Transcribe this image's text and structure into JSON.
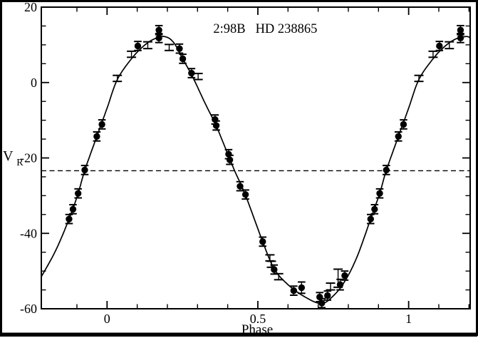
{
  "figure_background": "#ffffff",
  "ink_color": "#000000",
  "chart_data": {
    "type": "scatter",
    "title": "2:98B  HD 238865",
    "annotations": [
      {
        "text": "2:98B"
      },
      {
        "text": "HD 238865"
      }
    ],
    "xlabel": "Phase",
    "ylabel": {
      "base": "V",
      "sub": "R"
    },
    "xlim": [
      -0.218,
      1.204
    ],
    "ylim": [
      -60,
      20
    ],
    "x_ticks": [
      {
        "value": 0,
        "label": "0"
      },
      {
        "value": 0.5,
        "label": "0.5"
      },
      {
        "value": 1,
        "label": "1"
      }
    ],
    "x_minor_step": 0.1,
    "y_ticks": [
      {
        "value": 20,
        "label": "20"
      },
      {
        "value": 0,
        "label": "0"
      },
      {
        "value": -20,
        "label": "-20"
      },
      {
        "value": -40,
        "label": "-40"
      },
      {
        "value": -60,
        "label": "-60"
      }
    ],
    "y_minor_step": 5,
    "grid": false,
    "legend": "none",
    "systemic_velocity_dashed_line": -23.4,
    "phase_wrap_duplicate_range": [
      -0.19,
      1.19
    ],
    "model_curve_points": [
      [
        -0.218,
        -51.5
      ],
      [
        -0.17,
        -44.5
      ],
      [
        -0.126,
        -36.2
      ],
      [
        -0.096,
        -29.4
      ],
      [
        -0.074,
        -23.3
      ],
      [
        -0.034,
        -14.3
      ],
      [
        0.0,
        -6.8
      ],
      [
        0.034,
        0.8
      ],
      [
        0.081,
        6.3
      ],
      [
        0.12,
        9.6
      ],
      [
        0.155,
        11.5
      ],
      [
        0.19,
        12.2
      ],
      [
        0.22,
        10.7
      ],
      [
        0.251,
        6.3
      ],
      [
        0.285,
        1.3
      ],
      [
        0.325,
        -5.5
      ],
      [
        0.362,
        -11.5
      ],
      [
        0.405,
        -19.9
      ],
      [
        0.423,
        -23.4
      ],
      [
        0.459,
        -29.9
      ],
      [
        0.516,
        -42.2
      ],
      [
        0.554,
        -49.4
      ],
      [
        0.6,
        -53.6
      ],
      [
        0.655,
        -56.8
      ],
      [
        0.71,
        -58.6
      ],
      [
        0.75,
        -56.6
      ],
      [
        0.79,
        -52.5
      ],
      [
        0.83,
        -46.0
      ],
      [
        0.874,
        -36.2
      ],
      [
        0.904,
        -29.4
      ],
      [
        0.926,
        -23.3
      ],
      [
        0.966,
        -14.3
      ],
      [
        1.0,
        -6.8
      ],
      [
        1.034,
        0.8
      ],
      [
        1.081,
        6.3
      ],
      [
        1.12,
        9.6
      ],
      [
        1.155,
        11.5
      ],
      [
        1.19,
        12.2
      ],
      [
        1.204,
        11.9
      ]
    ],
    "series": [
      {
        "name": "radial velocities (filled circles)",
        "marker": "filled-circle",
        "points": [
          {
            "phase": 0.102,
            "v": 9.7,
            "err": 1.2
          },
          {
            "phase": 0.172,
            "v": 13.9,
            "err": 1.2
          },
          {
            "phase": 0.172,
            "v": 11.8,
            "err": 1.2
          },
          {
            "phase": 0.24,
            "v": 9.0,
            "err": 1.2
          },
          {
            "phase": 0.251,
            "v": 6.3,
            "err": 1.2
          },
          {
            "phase": 0.28,
            "v": 2.5,
            "err": 1.2
          },
          {
            "phase": 0.358,
            "v": -9.8,
            "err": 1.2
          },
          {
            "phase": 0.362,
            "v": -11.4,
            "err": 1.2
          },
          {
            "phase": 0.403,
            "v": -19.0,
            "err": 1.2
          },
          {
            "phase": 0.407,
            "v": -20.5,
            "err": 1.2
          },
          {
            "phase": 0.441,
            "v": -27.5,
            "err": 1.2
          },
          {
            "phase": 0.459,
            "v": -29.7,
            "err": 1.2
          },
          {
            "phase": 0.516,
            "v": -42.2,
            "err": 1.2
          },
          {
            "phase": 0.554,
            "v": -49.6,
            "err": 1.2
          },
          {
            "phase": 0.619,
            "v": -55.2,
            "err": 1.2
          },
          {
            "phase": 0.645,
            "v": -54.4,
            "err": 1.5
          },
          {
            "phase": 0.705,
            "v": -56.9,
            "err": 1.2
          },
          {
            "phase": 0.712,
            "v": -58.5,
            "err": 1.2
          },
          {
            "phase": 0.731,
            "v": -56.5,
            "err": 1.2
          },
          {
            "phase": 0.773,
            "v": -53.6,
            "err": 1.4
          },
          {
            "phase": 0.788,
            "v": -51.2,
            "err": 1.2
          },
          {
            "phase": 0.874,
            "v": -36.2,
            "err": 1.2
          },
          {
            "phase": 0.887,
            "v": -33.6,
            "err": 1.2
          },
          {
            "phase": 0.904,
            "v": -29.4,
            "err": 1.2
          },
          {
            "phase": 0.926,
            "v": -23.2,
            "err": 1.2
          },
          {
            "phase": 0.966,
            "v": -14.3,
            "err": 1.2
          },
          {
            "phase": 0.983,
            "v": -11.1,
            "err": 1.2
          }
        ]
      },
      {
        "name": "radial velocities (error bars only)",
        "marker": "error-bar",
        "points": [
          {
            "phase": 0.034,
            "v": 1.1,
            "err": 0.8
          },
          {
            "phase": 0.081,
            "v": 7.5,
            "err": 0.8
          },
          {
            "phase": 0.135,
            "v": 9.9,
            "err": 0.9
          },
          {
            "phase": 0.206,
            "v": 9.3,
            "err": 0.8
          },
          {
            "phase": 0.302,
            "v": 1.6,
            "err": 0.8
          },
          {
            "phase": 0.54,
            "v": -46.5,
            "err": 0.8
          },
          {
            "phase": 0.545,
            "v": -48.2,
            "err": 0.8
          },
          {
            "phase": 0.569,
            "v": -51.5,
            "err": 0.8
          },
          {
            "phase": 0.741,
            "v": -54.1,
            "err": 0.9
          },
          {
            "phase": 0.766,
            "v": -51.9,
            "err": 2.4
          }
        ]
      }
    ]
  }
}
